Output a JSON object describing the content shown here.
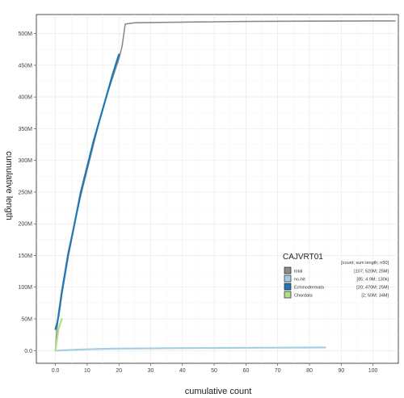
{
  "chart_data": {
    "type": "line",
    "title": "",
    "xlabel": "cumulative count",
    "ylabel": "cumulative length",
    "xlim": [
      -6,
      108
    ],
    "ylim": [
      -20,
      530
    ],
    "x_ticks": [
      {
        "value": 0,
        "label": "0.0"
      },
      {
        "value": 10,
        "label": "10"
      },
      {
        "value": 20,
        "label": "20"
      },
      {
        "value": 30,
        "label": "30"
      },
      {
        "value": 40,
        "label": "40"
      },
      {
        "value": 50,
        "label": "50"
      },
      {
        "value": 60,
        "label": "60"
      },
      {
        "value": 70,
        "label": "70"
      },
      {
        "value": 80,
        "label": "80"
      },
      {
        "value": 90,
        "label": "90"
      },
      {
        "value": 100,
        "label": "100"
      }
    ],
    "y_ticks": [
      {
        "value": 0,
        "label": "0.0"
      },
      {
        "value": 50,
        "label": "50M"
      },
      {
        "value": 100,
        "label": "100M"
      },
      {
        "value": 150,
        "label": "150M"
      },
      {
        "value": 200,
        "label": "200M"
      },
      {
        "value": 250,
        "label": "250M"
      },
      {
        "value": 300,
        "label": "300M"
      },
      {
        "value": 350,
        "label": "350M"
      },
      {
        "value": 400,
        "label": "400M"
      },
      {
        "value": 450,
        "label": "450M"
      },
      {
        "value": 500,
        "label": "500M"
      }
    ],
    "grid": true,
    "legend": {
      "title": "CAJVRT01",
      "placement": "right",
      "header": "[count; sum length; n50]",
      "entries": [
        {
          "name": "total",
          "stats": "[107; 520M; 25M]",
          "color": "#8c8c8c"
        },
        {
          "name": "no-hit",
          "stats": "[85; 4.9M; 130k]",
          "color": "#a6cee3"
        },
        {
          "name": "Echinodermata",
          "stats": "[20; 470M; 25M]",
          "color": "#1f78b4"
        },
        {
          "name": "Chordata",
          "stats": "[2; 50M; 34M]",
          "color": "#b2df8a"
        }
      ]
    },
    "series": [
      {
        "name": "total",
        "color": "#8c8c8c",
        "x": [
          0,
          0.5,
          1,
          2,
          3,
          4,
          6,
          8,
          10,
          12,
          14,
          16,
          18,
          19,
          20,
          21,
          22,
          25,
          40,
          60,
          80,
          100,
          107
        ],
        "y": [
          0,
          34,
          60,
          95,
          125,
          155,
          200,
          245,
          285,
          325,
          365,
          400,
          430,
          445,
          460,
          480,
          515,
          517,
          518,
          519,
          519.5,
          520,
          520
        ]
      },
      {
        "name": "no-hit",
        "color": "#a6cee3",
        "x": [
          0,
          5,
          10,
          15,
          20,
          30,
          40,
          50,
          60,
          70,
          80,
          85
        ],
        "y": [
          0,
          1.0,
          2.0,
          2.8,
          3.2,
          3.6,
          3.9,
          4.2,
          4.4,
          4.6,
          4.8,
          4.9
        ]
      },
      {
        "name": "Echinodermata",
        "color": "#1f78b4",
        "x": [
          0,
          0.5,
          1,
          2,
          4,
          6,
          8,
          10,
          12,
          14,
          16,
          18,
          20
        ],
        "y": [
          34,
          42,
          55,
          90,
          150,
          200,
          250,
          290,
          330,
          365,
          400,
          435,
          467
        ]
      },
      {
        "name": "Chordata",
        "color": "#b2df8a",
        "x": [
          0,
          1,
          2
        ],
        "y": [
          0,
          34,
          50
        ]
      }
    ]
  }
}
